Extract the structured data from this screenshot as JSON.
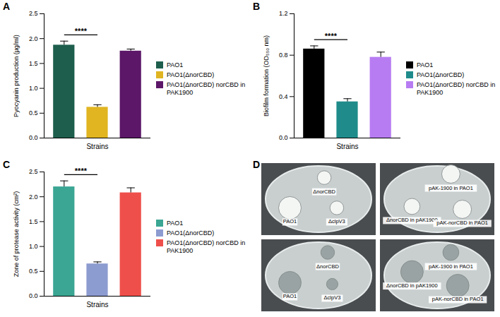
{
  "chart_data": [
    {
      "type": "bar",
      "panel": "A",
      "ylabel": "Pyocyanin production (µg/ml)",
      "xlabel": "Strains",
      "categories": [
        "PAO1",
        "PAO1(ΔnorCBD)",
        "PAO1(ΔnorCBD) norCBD in PAK1900"
      ],
      "values": [
        1.87,
        0.62,
        1.75
      ],
      "errors": [
        0.08,
        0.05,
        0.04
      ],
      "colors": [
        "#1d5e4c",
        "#e0b521",
        "#5c1768"
      ],
      "ylim": [
        0,
        2.5
      ],
      "yticks": [
        {
          "value": 0,
          "label": "0.0"
        },
        0.5,
        {
          "value": 1,
          "label": "1.0"
        },
        1.5,
        {
          "value": 2,
          "label": "2.0"
        },
        2.5
      ],
      "annotations": [
        {
          "text": "****",
          "categories": [
            "PAO1",
            "PAO1(ΔnorCBD)"
          ]
        }
      ],
      "legend": "right",
      "tick_labels": "y"
    },
    {
      "type": "bar",
      "panel": "B",
      "ylabel": "Biofilm formation (OD₅₅₀ nm)",
      "xlabel": "Strains",
      "categories": [
        "PAO1",
        "PAO1(ΔnorCBD)",
        "PAO1(ΔnorCBD) norCBD in PAK1900"
      ],
      "values": [
        0.86,
        0.35,
        0.78
      ],
      "errors": [
        0.03,
        0.03,
        0.05
      ],
      "colors": [
        "#000000",
        "#1f8c8b",
        "#b77cf2"
      ],
      "ylim": [
        0,
        1.2
      ],
      "yticks": [
        {
          "value": 0,
          "label": "0.0"
        },
        0.4,
        0.8,
        1.2
      ],
      "annotations": [
        {
          "text": "****",
          "categories": [
            "PAO1",
            "PAO1(ΔnorCBD)"
          ]
        }
      ],
      "legend": "right",
      "tick_labels": "y"
    },
    {
      "type": "bar",
      "panel": "C",
      "ylabel": "Zone of protease activity (cm²)",
      "xlabel": "Strains",
      "categories": [
        "PAO1",
        "PAO1(ΔnorCBD)",
        "PAO1(ΔnorCBD) norCBD in PAK1900"
      ],
      "values": [
        2.2,
        0.65,
        2.08
      ],
      "errors": [
        0.12,
        0.04,
        0.1
      ],
      "colors": [
        "#3aa693",
        "#8c9bd0",
        "#ef4f4a"
      ],
      "ylim": [
        0,
        2.5
      ],
      "yticks": [
        {
          "value": 0,
          "label": "0.0"
        },
        0.5,
        {
          "value": 1,
          "label": "1.0"
        },
        1.5,
        {
          "value": 2,
          "label": "2.0"
        },
        2.5
      ],
      "annotations": [
        {
          "text": "****",
          "categories": [
            "PAO1",
            "PAO1(ΔnorCBD)"
          ]
        }
      ],
      "legend": "right",
      "tick_labels": "y"
    }
  ],
  "panel_d": {
    "panel": "D",
    "plates": [
      {
        "labels": [
          "ΔnorCBD",
          "PAO1",
          "ΔclpV3"
        ]
      },
      {
        "labels": [
          "pAK-1900 in PAO1",
          "ΔnorCBD in pAK1900",
          "pAK-norCBD in PAO1"
        ]
      },
      {
        "labels": [
          "ΔnorCBD",
          "PAO1",
          "ΔclpV3"
        ]
      },
      {
        "labels": [
          "ΔnorCBD in pAK1900",
          "pAK-1900 in PAO1",
          "pAK-norCBD in PAO1"
        ]
      }
    ]
  }
}
